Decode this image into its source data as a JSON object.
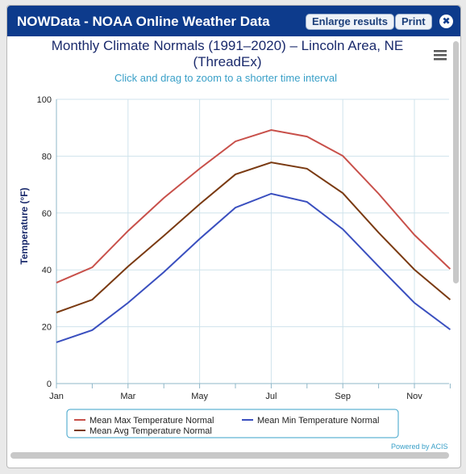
{
  "window": {
    "title": "NOWData - NOAA Online Weather Data",
    "buttons": [
      "Enlarge results",
      "Print"
    ],
    "close": "✖",
    "credit": "Powered by ACIS"
  },
  "chart_data": {
    "type": "line",
    "title": "Monthly Climate Normals (1991–2020) – Lincoln Area, NE (ThreadEx)",
    "subtitle": "Click and drag to zoom to a shorter time interval",
    "y_label": "Temperature (°F)",
    "categories": [
      "Jan",
      null,
      "Mar",
      null,
      "May",
      null,
      "Jul",
      null,
      "Sep",
      null,
      "Nov",
      null
    ],
    "ylim": [
      0,
      100
    ],
    "yticks": [
      0,
      20,
      40,
      60,
      80,
      100
    ],
    "grid": true,
    "series": [
      {
        "name": "Mean Max Temperature Normal",
        "color": "#c8504a",
        "values": [
          35.5,
          40.9,
          53.7,
          65.3,
          75.6,
          85.2,
          89.2,
          86.9,
          80.1,
          66.8,
          52.3,
          40.3
        ]
      },
      {
        "name": "Mean Min Temperature Normal",
        "color": "#3a4fbf",
        "values": [
          14.5,
          18.8,
          28.4,
          39.2,
          50.9,
          61.9,
          66.8,
          63.9,
          54.3,
          41.2,
          28.4,
          19.0
        ]
      },
      {
        "name": "Mean Avg Temperature Normal",
        "color": "#7a3a12",
        "values": [
          25.0,
          29.5,
          41.2,
          52.0,
          63.1,
          73.6,
          77.8,
          75.6,
          67.0,
          53.1,
          40.1,
          29.5
        ]
      }
    ]
  }
}
